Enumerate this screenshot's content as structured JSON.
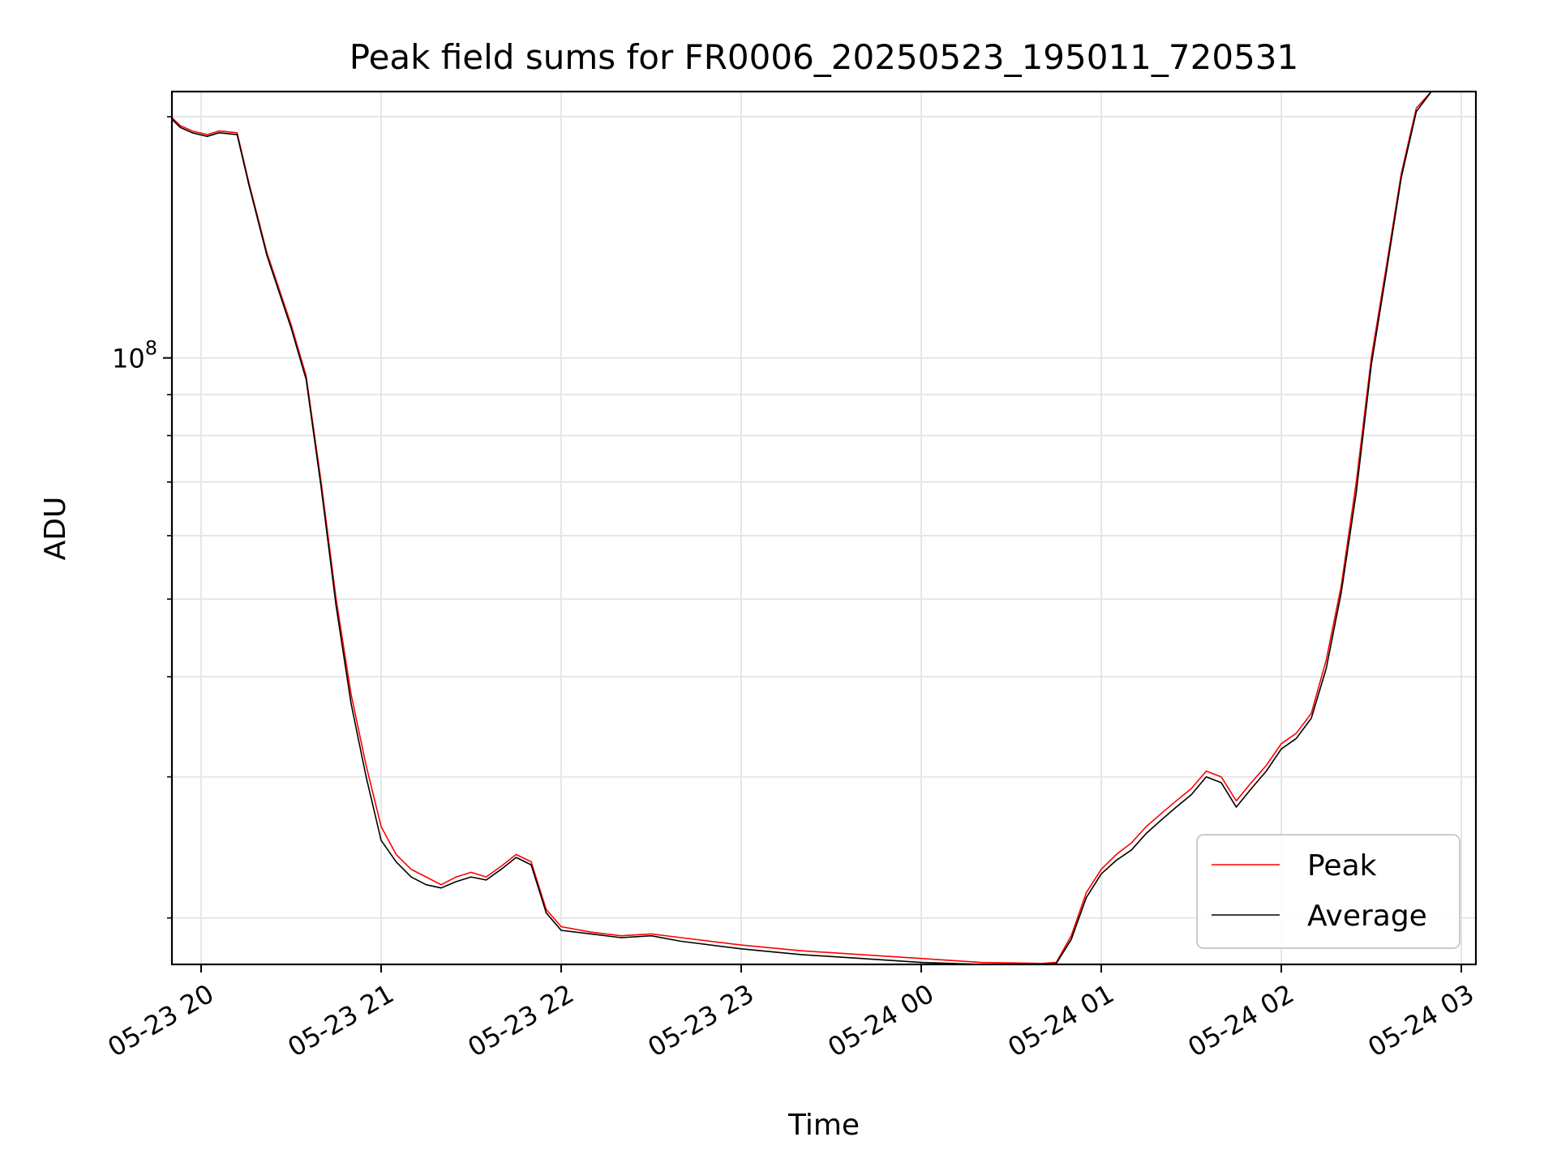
{
  "chart_data": {
    "type": "line",
    "title": "Peak field sums for FR0006_20250523_195011_720531",
    "xlabel": "Time",
    "ylabel": "ADU",
    "yscale": "log",
    "ylim": [
      17500000,
      215000000
    ],
    "grid": true,
    "legend": "lower-right",
    "x_tick_labels": [
      "05-23 20",
      "05-23 21",
      "05-23 22",
      "05-23 23",
      "05-24 00",
      "05-24 01",
      "05-24 02",
      "05-24 03"
    ],
    "y_tick_major": [
      {
        "value": 100000000,
        "base": "10",
        "exp": "8"
      }
    ],
    "y_tick_minor": [
      20000000,
      30000000,
      40000000,
      50000000,
      60000000,
      70000000,
      80000000,
      90000000,
      200000000
    ],
    "series": [
      {
        "name": "Peak",
        "color": "#ff0000",
        "points": [
          [
            "2025-05-23T19:50",
            200000000
          ],
          [
            "2025-05-23T19:53",
            195000000
          ],
          [
            "2025-05-23T19:57",
            192000000
          ],
          [
            "2025-05-23T20:02",
            190000000
          ],
          [
            "2025-05-23T20:06",
            192000000
          ],
          [
            "2025-05-23T20:12",
            191000000
          ],
          [
            "2025-05-23T20:16",
            165000000
          ],
          [
            "2025-05-23T20:22",
            135000000
          ],
          [
            "2025-05-23T20:30",
            110000000
          ],
          [
            "2025-05-23T20:35",
            95000000
          ],
          [
            "2025-05-23T20:40",
            70000000
          ],
          [
            "2025-05-23T20:45",
            50000000
          ],
          [
            "2025-05-23T20:50",
            38000000
          ],
          [
            "2025-05-23T20:55",
            31000000
          ],
          [
            "2025-05-23T21:00",
            26000000
          ],
          [
            "2025-05-23T21:05",
            24000000
          ],
          [
            "2025-05-23T21:10",
            23000000
          ],
          [
            "2025-05-23T21:15",
            22500000
          ],
          [
            "2025-05-23T21:20",
            22000000
          ],
          [
            "2025-05-23T21:25",
            22500000
          ],
          [
            "2025-05-23T21:30",
            22800000
          ],
          [
            "2025-05-23T21:35",
            22500000
          ],
          [
            "2025-05-23T21:40",
            23200000
          ],
          [
            "2025-05-23T21:45",
            24000000
          ],
          [
            "2025-05-23T21:50",
            23500000
          ],
          [
            "2025-05-23T21:55",
            20500000
          ],
          [
            "2025-05-23T22:00",
            19500000
          ],
          [
            "2025-05-23T22:10",
            19200000
          ],
          [
            "2025-05-23T22:20",
            19000000
          ],
          [
            "2025-05-23T22:30",
            19100000
          ],
          [
            "2025-05-23T22:40",
            18900000
          ],
          [
            "2025-05-23T23:00",
            18500000
          ],
          [
            "2025-05-23T23:20",
            18200000
          ],
          [
            "2025-05-23T23:40",
            18000000
          ],
          [
            "2025-05-24T00:00",
            17800000
          ],
          [
            "2025-05-24T00:20",
            17600000
          ],
          [
            "2025-05-24T00:40",
            17550000
          ],
          [
            "2025-05-24T00:45",
            17600000
          ],
          [
            "2025-05-24T00:50",
            19000000
          ],
          [
            "2025-05-24T00:55",
            21500000
          ],
          [
            "2025-05-24T01:00",
            23000000
          ],
          [
            "2025-05-24T01:05",
            24000000
          ],
          [
            "2025-05-24T01:10",
            24800000
          ],
          [
            "2025-05-24T01:15",
            26000000
          ],
          [
            "2025-05-24T01:20",
            27000000
          ],
          [
            "2025-05-24T01:25",
            28000000
          ],
          [
            "2025-05-24T01:30",
            29000000
          ],
          [
            "2025-05-24T01:35",
            30500000
          ],
          [
            "2025-05-24T01:40",
            30000000
          ],
          [
            "2025-05-24T01:45",
            28000000
          ],
          [
            "2025-05-24T01:50",
            29500000
          ],
          [
            "2025-05-24T01:55",
            31000000
          ],
          [
            "2025-05-24T02:00",
            33000000
          ],
          [
            "2025-05-24T02:05",
            34000000
          ],
          [
            "2025-05-24T02:10",
            36000000
          ],
          [
            "2025-05-24T02:15",
            42000000
          ],
          [
            "2025-05-24T02:20",
            52000000
          ],
          [
            "2025-05-24T02:25",
            70000000
          ],
          [
            "2025-05-24T02:30",
            100000000
          ],
          [
            "2025-05-24T02:35",
            130000000
          ],
          [
            "2025-05-24T02:40",
            170000000
          ],
          [
            "2025-05-24T02:45",
            205000000
          ],
          [
            "2025-05-24T02:50",
            215000000
          ]
        ]
      },
      {
        "name": "Average",
        "color": "#000000",
        "points": [
          [
            "2025-05-23T19:50",
            199000000
          ],
          [
            "2025-05-23T19:53",
            194000000
          ],
          [
            "2025-05-23T19:57",
            191000000
          ],
          [
            "2025-05-23T20:02",
            189000000
          ],
          [
            "2025-05-23T20:06",
            191000000
          ],
          [
            "2025-05-23T20:12",
            190000000
          ],
          [
            "2025-05-23T20:16",
            164000000
          ],
          [
            "2025-05-23T20:22",
            134000000
          ],
          [
            "2025-05-23T20:30",
            109000000
          ],
          [
            "2025-05-23T20:35",
            94000000
          ],
          [
            "2025-05-23T20:40",
            69000000
          ],
          [
            "2025-05-23T20:45",
            49000000
          ],
          [
            "2025-05-23T20:50",
            37000000
          ],
          [
            "2025-05-23T20:55",
            30000000
          ],
          [
            "2025-05-23T21:00",
            25000000
          ],
          [
            "2025-05-23T21:05",
            23500000
          ],
          [
            "2025-05-23T21:10",
            22500000
          ],
          [
            "2025-05-23T21:15",
            22000000
          ],
          [
            "2025-05-23T21:20",
            21800000
          ],
          [
            "2025-05-23T21:25",
            22200000
          ],
          [
            "2025-05-23T21:30",
            22500000
          ],
          [
            "2025-05-23T21:35",
            22300000
          ],
          [
            "2025-05-23T21:40",
            23000000
          ],
          [
            "2025-05-23T21:45",
            23800000
          ],
          [
            "2025-05-23T21:50",
            23300000
          ],
          [
            "2025-05-23T21:55",
            20300000
          ],
          [
            "2025-05-23T22:00",
            19300000
          ],
          [
            "2025-05-23T22:10",
            19100000
          ],
          [
            "2025-05-23T22:20",
            18900000
          ],
          [
            "2025-05-23T22:30",
            19000000
          ],
          [
            "2025-05-23T22:40",
            18700000
          ],
          [
            "2025-05-23T23:00",
            18300000
          ],
          [
            "2025-05-23T23:20",
            18000000
          ],
          [
            "2025-05-23T23:40",
            17800000
          ],
          [
            "2025-05-24T00:00",
            17600000
          ],
          [
            "2025-05-24T00:20",
            17500000
          ],
          [
            "2025-05-24T00:40",
            17500000
          ],
          [
            "2025-05-24T00:45",
            17550000
          ],
          [
            "2025-05-24T00:50",
            18800000
          ],
          [
            "2025-05-24T00:55",
            21200000
          ],
          [
            "2025-05-24T01:00",
            22700000
          ],
          [
            "2025-05-24T01:05",
            23600000
          ],
          [
            "2025-05-24T01:10",
            24300000
          ],
          [
            "2025-05-24T01:15",
            25500000
          ],
          [
            "2025-05-24T01:20",
            26500000
          ],
          [
            "2025-05-24T01:25",
            27500000
          ],
          [
            "2025-05-24T01:30",
            28500000
          ],
          [
            "2025-05-24T01:35",
            30000000
          ],
          [
            "2025-05-24T01:40",
            29500000
          ],
          [
            "2025-05-24T01:45",
            27500000
          ],
          [
            "2025-05-24T01:50",
            29000000
          ],
          [
            "2025-05-24T01:55",
            30500000
          ],
          [
            "2025-05-24T02:00",
            32500000
          ],
          [
            "2025-05-24T02:05",
            33500000
          ],
          [
            "2025-05-24T02:10",
            35500000
          ],
          [
            "2025-05-24T02:15",
            41000000
          ],
          [
            "2025-05-24T02:20",
            51000000
          ],
          [
            "2025-05-24T02:25",
            68000000
          ],
          [
            "2025-05-24T02:30",
            98000000
          ],
          [
            "2025-05-24T02:35",
            128000000
          ],
          [
            "2025-05-24T02:40",
            168000000
          ],
          [
            "2025-05-24T02:45",
            203000000
          ],
          [
            "2025-05-24T02:50",
            215000000
          ]
        ]
      }
    ]
  }
}
